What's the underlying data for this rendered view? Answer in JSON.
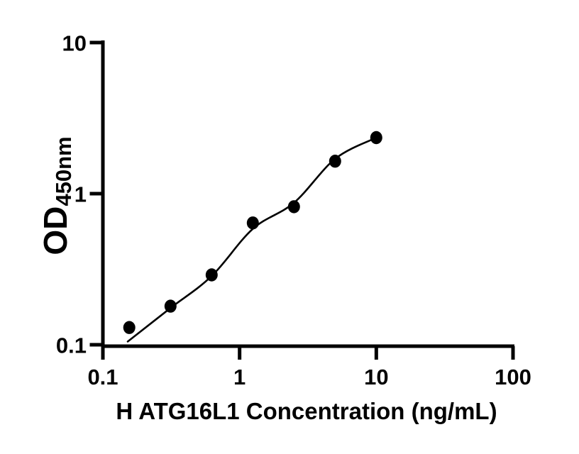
{
  "figure": {
    "background_color": "#ffffff",
    "ink_color": "#000000"
  },
  "chart_data": {
    "type": "scatter",
    "title": "",
    "xlabel": "H ATG16L1 Concentration (ng/mL)",
    "ylabel_main": "OD",
    "ylabel_subscript": "450nm",
    "xscale": "log",
    "yscale": "log",
    "xlim": [
      0.1,
      100
    ],
    "ylim": [
      0.1,
      10
    ],
    "x_ticks": [
      "0.1",
      "1",
      "10",
      "100"
    ],
    "y_ticks": [
      "0.1",
      "1",
      "10"
    ],
    "grid": false,
    "legend": null,
    "marker_color": "#000000",
    "curve_color": "#000000",
    "points": [
      {
        "conc_ng_ml": 0.156,
        "od": 0.13
      },
      {
        "conc_ng_ml": 0.3125,
        "od": 0.18
      },
      {
        "conc_ng_ml": 0.625,
        "od": 0.29
      },
      {
        "conc_ng_ml": 1.25,
        "od": 0.64
      },
      {
        "conc_ng_ml": 2.5,
        "od": 0.82
      },
      {
        "conc_ng_ml": 5,
        "od": 1.64
      },
      {
        "conc_ng_ml": 10,
        "od": 2.35
      }
    ],
    "fit_curve": [
      {
        "conc_ng_ml": 0.152,
        "od": 0.105
      },
      {
        "conc_ng_ml": 0.3125,
        "od": 0.175
      },
      {
        "conc_ng_ml": 0.625,
        "od": 0.285
      },
      {
        "conc_ng_ml": 1.25,
        "od": 0.585
      },
      {
        "conc_ng_ml": 2.5,
        "od": 0.87
      },
      {
        "conc_ng_ml": 5,
        "od": 1.7
      },
      {
        "conc_ng_ml": 10,
        "od": 2.35
      }
    ]
  }
}
